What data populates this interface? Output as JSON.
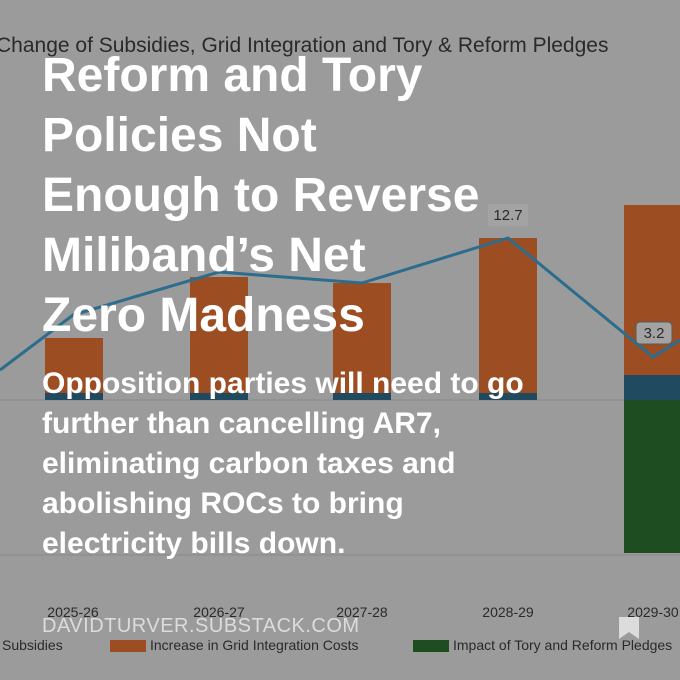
{
  "background_chart": {
    "title": "Change of Subsidies, Grid Integration and Tory & Reform Pledges",
    "categories": [
      "2025-26",
      "2026-27",
      "2027-28",
      "2028-29",
      "2029-30"
    ],
    "value_labels": [
      "12.7",
      "3.2"
    ],
    "legend": [
      "Subsidies",
      "Increase in Grid Integration Costs",
      "Impact of Tory and Reform Pledges"
    ]
  },
  "post": {
    "title_lines": [
      "Reform and Tory",
      "Policies Not",
      "Enough to Reverse",
      "Miliband’s Net",
      "Zero Madness"
    ],
    "subtitle_lines": [
      "Opposition parties will need to go",
      "further than cancelling AR7,",
      "eliminating carbon taxes and",
      "abolishing ROCs to bring",
      "electricity bills down."
    ],
    "site": "DAVIDTURVER.SUBSTACK.COM"
  }
}
